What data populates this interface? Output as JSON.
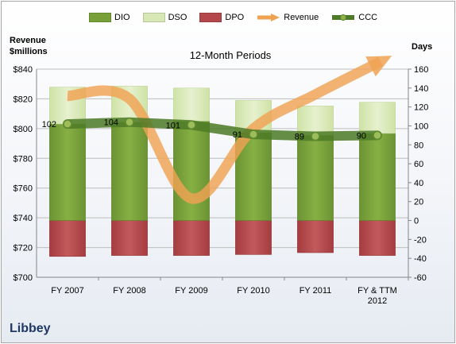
{
  "company": "Libbey",
  "chart_data": {
    "type": "bar",
    "title": "12-Month Periods",
    "y_left_label": [
      "Revenue",
      "$millions"
    ],
    "y_right_label": "Days",
    "categories": [
      [
        "FY 2007"
      ],
      [
        "FY 2008"
      ],
      [
        "FY 2009"
      ],
      [
        "FY 2010"
      ],
      [
        "FY 2011"
      ],
      [
        "FY & TTM",
        "2012"
      ]
    ],
    "y_left_lim": [
      700,
      840
    ],
    "y_left_ticks": [
      "$700",
      "$720",
      "$740",
      "$760",
      "$780",
      "$800",
      "$820",
      "$840"
    ],
    "y_right_lim": [
      -60,
      160
    ],
    "y_right_ticks": [
      "-60",
      "-40",
      "-20",
      "0",
      "20",
      "40",
      "60",
      "80",
      "100",
      "120",
      "140",
      "160"
    ],
    "grid": true,
    "legend_position": "top",
    "series": [
      {
        "name": "DIO",
        "color": "#77a038",
        "values": [
          102,
          104,
          105,
          93,
          90,
          92
        ]
      },
      {
        "name": "DSO",
        "color": "#d7e8b5",
        "values": [
          39,
          38,
          35,
          34,
          31,
          33
        ]
      },
      {
        "name": "DPO",
        "color": "#b4474b",
        "values": [
          -38,
          -37,
          -37,
          -36,
          -34,
          -37
        ]
      },
      {
        "name": "Revenue",
        "color": "#f0a253",
        "axis": "left",
        "values": [
          822,
          820,
          753,
          800,
          823,
          843
        ]
      },
      {
        "name": "CCC",
        "color": "#4c7a26",
        "values": [
          102,
          104,
          101,
          91,
          89,
          90
        ],
        "data_labels": [
          "102",
          "104",
          "101",
          "91",
          "89",
          "90"
        ]
      }
    ]
  }
}
